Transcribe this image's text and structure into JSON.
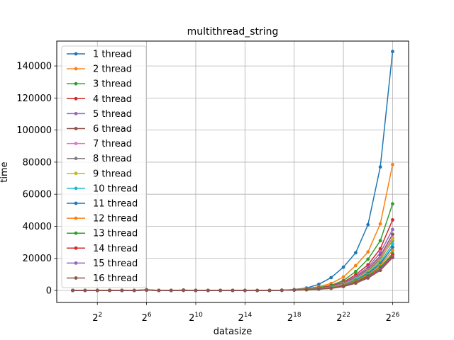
{
  "chart_data": {
    "type": "line",
    "title": "multithread_string",
    "xlabel": "datasize",
    "ylabel": "time",
    "x_scale": "log2",
    "x_exponents": [
      0,
      1,
      2,
      3,
      4,
      5,
      6,
      7,
      8,
      9,
      10,
      11,
      12,
      13,
      14,
      15,
      16,
      17,
      18,
      19,
      20,
      21,
      22,
      23,
      24,
      25,
      26
    ],
    "xlim_exponent": [
      -1.3,
      27.3
    ],
    "ylim": [
      -7500,
      155500
    ],
    "x_ticks": [
      {
        "exp": 2,
        "base": "2",
        "sup": "2"
      },
      {
        "exp": 6,
        "base": "2",
        "sup": "6"
      },
      {
        "exp": 10,
        "base": "2",
        "sup": "10"
      },
      {
        "exp": 14,
        "base": "2",
        "sup": "14"
      },
      {
        "exp": 18,
        "base": "2",
        "sup": "18"
      },
      {
        "exp": 22,
        "base": "2",
        "sup": "22"
      },
      {
        "exp": 26,
        "base": "2",
        "sup": "26"
      }
    ],
    "y_ticks": [
      0,
      20000,
      40000,
      60000,
      80000,
      100000,
      120000,
      140000
    ],
    "y_tick_labels": [
      "0",
      "20000",
      "40000",
      "60000",
      "80000",
      "100000",
      "120000",
      "140000"
    ],
    "grid": true,
    "legend_position": "upper-left",
    "series": [
      {
        "name": "1 thread",
        "color": "#1f77b4",
        "values": [
          0,
          0,
          0,
          0,
          0,
          0,
          500,
          0,
          0,
          200,
          0,
          0,
          0,
          0,
          0,
          0,
          0,
          100,
          600,
          1500,
          3800,
          8000,
          14500,
          23500,
          41000,
          77000,
          149000
        ]
      },
      {
        "name": "2 thread",
        "color": "#ff7f0e",
        "values": [
          0,
          0,
          0,
          0,
          0,
          0,
          400,
          0,
          0,
          200,
          0,
          0,
          0,
          0,
          0,
          0,
          0,
          100,
          500,
          1100,
          2400,
          4300,
          8400,
          15500,
          24000,
          41500,
          78500
        ]
      },
      {
        "name": "3 thread",
        "color": "#2ca02c",
        "values": [
          0,
          0,
          0,
          0,
          0,
          0,
          300,
          0,
          0,
          150,
          0,
          0,
          0,
          0,
          0,
          0,
          0,
          100,
          400,
          800,
          1800,
          3200,
          6200,
          11800,
          19500,
          31000,
          54000
        ]
      },
      {
        "name": "4 thread",
        "color": "#d62728",
        "values": [
          0,
          0,
          0,
          0,
          0,
          0,
          300,
          0,
          0,
          150,
          0,
          0,
          0,
          0,
          0,
          0,
          0,
          100,
          300,
          700,
          1500,
          2700,
          5200,
          9800,
          16000,
          26000,
          44000
        ]
      },
      {
        "name": "5 thread",
        "color": "#9467bd",
        "values": [
          0,
          0,
          0,
          0,
          0,
          0,
          300,
          0,
          0,
          150,
          0,
          0,
          0,
          0,
          0,
          0,
          0,
          100,
          300,
          600,
          1300,
          2400,
          4700,
          8800,
          14500,
          23500,
          38000
        ]
      },
      {
        "name": "6 thread",
        "color": "#8c564b",
        "values": [
          0,
          0,
          0,
          0,
          0,
          0,
          200,
          0,
          0,
          150,
          0,
          0,
          0,
          0,
          0,
          0,
          0,
          100,
          300,
          600,
          1200,
          2200,
          4300,
          8000,
          13500,
          21500,
          35000
        ]
      },
      {
        "name": "7 thread",
        "color": "#e377c2",
        "values": [
          0,
          0,
          0,
          0,
          0,
          0,
          200,
          0,
          0,
          100,
          0,
          0,
          0,
          0,
          0,
          0,
          0,
          100,
          300,
          600,
          1200,
          2100,
          4100,
          7600,
          12800,
          20500,
          33000
        ]
      },
      {
        "name": "8 thread",
        "color": "#7f7f7f",
        "values": [
          0,
          0,
          0,
          0,
          0,
          0,
          200,
          0,
          0,
          100,
          0,
          0,
          0,
          0,
          0,
          0,
          0,
          100,
          300,
          600,
          1100,
          2000,
          3900,
          7300,
          12200,
          19500,
          31000
        ]
      },
      {
        "name": "9 thread",
        "color": "#bcbd22",
        "values": [
          0,
          0,
          0,
          0,
          0,
          0,
          200,
          0,
          0,
          100,
          0,
          0,
          0,
          0,
          0,
          0,
          0,
          100,
          300,
          500,
          1100,
          1900,
          3700,
          7000,
          11700,
          18500,
          32000
        ]
      },
      {
        "name": "10 thread",
        "color": "#17becf",
        "values": [
          0,
          0,
          0,
          0,
          0,
          0,
          200,
          0,
          0,
          100,
          0,
          0,
          0,
          0,
          0,
          0,
          0,
          100,
          300,
          500,
          1000,
          1800,
          3500,
          6600,
          11000,
          17500,
          29000
        ]
      },
      {
        "name": "11 thread",
        "color": "#1f77b4",
        "values": [
          0,
          0,
          0,
          0,
          0,
          0,
          200,
          0,
          0,
          100,
          0,
          0,
          0,
          0,
          0,
          0,
          0,
          100,
          300,
          500,
          1000,
          1700,
          3300,
          6200,
          10500,
          16500,
          27000
        ]
      },
      {
        "name": "12 thread",
        "color": "#ff7f0e",
        "values": [
          0,
          0,
          0,
          0,
          0,
          0,
          200,
          0,
          0,
          100,
          0,
          0,
          0,
          0,
          0,
          0,
          0,
          100,
          300,
          500,
          900,
          1600,
          3100,
          5800,
          9800,
          15500,
          25000
        ]
      },
      {
        "name": "13 thread",
        "color": "#2ca02c",
        "values": [
          0,
          0,
          0,
          0,
          0,
          0,
          200,
          0,
          0,
          100,
          0,
          0,
          0,
          0,
          0,
          0,
          0,
          100,
          200,
          500,
          900,
          1500,
          2900,
          5400,
          9200,
          14500,
          23000
        ]
      },
      {
        "name": "14 thread",
        "color": "#d62728",
        "values": [
          0,
          0,
          0,
          0,
          0,
          0,
          200,
          0,
          0,
          100,
          0,
          0,
          0,
          0,
          0,
          0,
          0,
          100,
          200,
          400,
          800,
          1400,
          2700,
          5000,
          8500,
          13500,
          22000
        ]
      },
      {
        "name": "15 thread",
        "color": "#9467bd",
        "values": [
          0,
          0,
          0,
          0,
          0,
          0,
          200,
          0,
          0,
          100,
          0,
          0,
          0,
          0,
          0,
          0,
          0,
          100,
          200,
          400,
          800,
          1300,
          2500,
          4700,
          8000,
          13000,
          21000
        ]
      },
      {
        "name": "16 thread",
        "color": "#8c564b",
        "values": [
          0,
          0,
          0,
          0,
          0,
          0,
          200,
          0,
          0,
          100,
          0,
          0,
          0,
          0,
          0,
          0,
          0,
          100,
          200,
          400,
          800,
          1300,
          2400,
          4500,
          7700,
          12500,
          20500
        ]
      }
    ]
  }
}
